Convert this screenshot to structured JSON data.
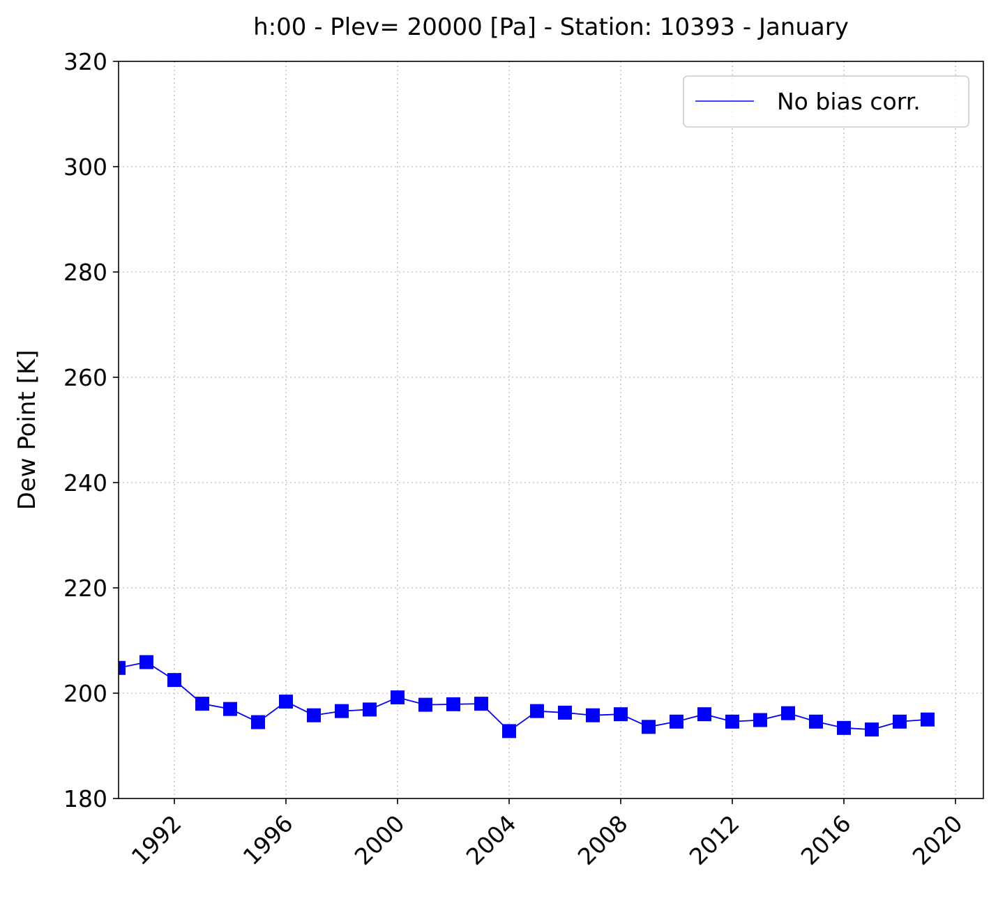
{
  "chart_data": {
    "type": "line",
    "title": "h:00 - Plev= 20000 [Pa] - Station: 10393 - January",
    "xlabel": "",
    "ylabel": "Dew Point [K]",
    "xlim": [
      1990,
      2021
    ],
    "ylim": [
      180,
      320
    ],
    "xticks": [
      1992,
      1996,
      2000,
      2004,
      2008,
      2012,
      2016,
      2020
    ],
    "xtick_labels": [
      "1992",
      "1996",
      "2000",
      "2004",
      "2008",
      "2012",
      "2016",
      "2020"
    ],
    "yticks": [
      180,
      200,
      220,
      240,
      260,
      280,
      300,
      320
    ],
    "ytick_labels": [
      "180",
      "200",
      "220",
      "240",
      "260",
      "280",
      "300",
      "320"
    ],
    "grid": true,
    "legend_position": "top-right",
    "series": [
      {
        "name": "No bias corr.",
        "color": "#0000ff",
        "marker": "square",
        "x": [
          1990,
          1991,
          1992,
          1993,
          1994,
          1995,
          1996,
          1997,
          1998,
          1999,
          2000,
          2001,
          2002,
          2003,
          2004,
          2005,
          2006,
          2007,
          2008,
          2009,
          2010,
          2011,
          2012,
          2013,
          2014,
          2015,
          2016,
          2017,
          2018,
          2019
        ],
        "values": [
          204.8,
          205.9,
          202.5,
          198.0,
          197.0,
          194.5,
          198.4,
          195.8,
          196.6,
          196.9,
          199.2,
          197.8,
          197.9,
          198.0,
          192.8,
          196.6,
          196.3,
          195.8,
          196.0,
          193.6,
          194.6,
          196.0,
          194.6,
          194.9,
          196.2,
          194.6,
          193.4,
          193.1,
          194.6,
          195.0
        ]
      }
    ]
  }
}
